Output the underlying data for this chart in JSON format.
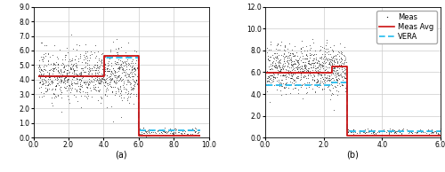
{
  "subplot_a": {
    "xlim": [
      0.0,
      10.0
    ],
    "ylim": [
      0.0,
      9.0
    ],
    "xticks": [
      0.0,
      2.0,
      4.0,
      6.0,
      8.0,
      10.0
    ],
    "yticks": [
      0.0,
      1.0,
      2.0,
      3.0,
      4.0,
      5.0,
      6.0,
      7.0,
      8.0,
      9.0
    ],
    "xlabel": "(a)",
    "phases": [
      {
        "x_range": [
          0.3,
          6.0
        ],
        "y_mean": 4.3,
        "y_std": 0.85,
        "n": 900
      },
      {
        "x_range": [
          6.0,
          9.5
        ],
        "y_mean": 0.38,
        "y_std": 0.13,
        "n": 120
      }
    ],
    "avg_x": [
      0.3,
      4.05,
      4.05,
      6.0,
      6.0,
      9.5
    ],
    "avg_y": [
      4.25,
      4.25,
      5.65,
      5.65,
      0.13,
      0.13
    ],
    "vera_x": [
      0.3,
      4.05,
      4.05,
      6.0,
      6.0,
      9.5
    ],
    "vera_y": [
      4.2,
      4.2,
      5.5,
      5.5,
      0.5,
      0.5
    ]
  },
  "subplot_b": {
    "xlim": [
      0.0,
      6.0
    ],
    "ylim": [
      0.0,
      12.0
    ],
    "xticks": [
      0.0,
      2.0,
      4.0,
      6.0
    ],
    "yticks": [
      0.0,
      2.0,
      4.0,
      6.0,
      8.0,
      10.0,
      12.0
    ],
    "xlabel": "(b)",
    "phases": [
      {
        "x_range": [
          0.05,
          2.8
        ],
        "y_mean": 6.3,
        "y_std": 1.05,
        "n": 800
      },
      {
        "x_range": [
          2.8,
          6.1
        ],
        "y_mean": 0.55,
        "y_std": 0.13,
        "n": 150
      }
    ],
    "avg_x": [
      0.05,
      2.3,
      2.3,
      2.8,
      2.8,
      6.1
    ],
    "avg_y": [
      5.95,
      5.95,
      6.55,
      6.55,
      0.18,
      0.18
    ],
    "vera_x": [
      0.05,
      2.3,
      2.3,
      2.8,
      2.8,
      6.1
    ],
    "vera_y": [
      4.85,
      4.85,
      5.1,
      5.1,
      0.6,
      0.6
    ]
  },
  "colors": {
    "scatter": "#111111",
    "avg": "#cc1111",
    "vera": "#22bbee"
  },
  "scatter_size": 1.0,
  "avg_lw": 1.3,
  "vera_lw": 1.3,
  "tick_fontsize": 5.5,
  "xlabel_fontsize": 7.0,
  "legend_fontsize": 6.0
}
